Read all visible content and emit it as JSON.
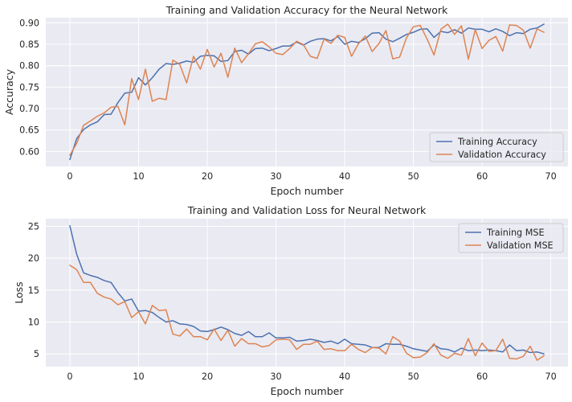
{
  "figure": {
    "background": "#ffffff",
    "axes_background": "#eaeaf2",
    "grid_color": "#ffffff",
    "series_colors": [
      "#4c72b0",
      "#dd8452"
    ]
  },
  "chart_data": [
    {
      "type": "line",
      "title": "Training and Validation Accuracy for the Neural Network",
      "xlabel": "Epoch number",
      "ylabel": "Accuracy",
      "xlim": [
        -3.5,
        72.5
      ],
      "ylim": [
        0.565,
        0.912
      ],
      "xticks": [
        0,
        10,
        20,
        30,
        40,
        50,
        60,
        70
      ],
      "yticks": [
        0.6,
        0.65,
        0.7,
        0.75,
        0.8,
        0.85,
        0.9
      ],
      "ytick_labels": [
        "0.60",
        "0.65",
        "0.70",
        "0.75",
        "0.80",
        "0.85",
        "0.90"
      ],
      "grid": true,
      "legend": "lower-right",
      "series": [
        {
          "name": "Training Accuracy",
          "color": "#4c72b0",
          "values": [
            0.581,
            0.63,
            0.651,
            0.662,
            0.669,
            0.686,
            0.687,
            0.714,
            0.736,
            0.738,
            0.772,
            0.755,
            0.772,
            0.792,
            0.805,
            0.803,
            0.806,
            0.811,
            0.808,
            0.822,
            0.824,
            0.823,
            0.81,
            0.812,
            0.833,
            0.836,
            0.827,
            0.84,
            0.841,
            0.835,
            0.84,
            0.846,
            0.846,
            0.855,
            0.848,
            0.857,
            0.862,
            0.863,
            0.858,
            0.868,
            0.85,
            0.857,
            0.854,
            0.863,
            0.876,
            0.877,
            0.862,
            0.856,
            0.864,
            0.873,
            0.878,
            0.885,
            0.886,
            0.866,
            0.88,
            0.877,
            0.884,
            0.876,
            0.888,
            0.885,
            0.885,
            0.879,
            0.886,
            0.88,
            0.87,
            0.877,
            0.875,
            0.885,
            0.888,
            0.897
          ]
        },
        {
          "name": "Validation Accuracy",
          "color": "#dd8452",
          "values": [
            0.591,
            0.619,
            0.661,
            0.671,
            0.682,
            0.69,
            0.703,
            0.705,
            0.662,
            0.77,
            0.721,
            0.792,
            0.717,
            0.724,
            0.721,
            0.813,
            0.803,
            0.76,
            0.822,
            0.792,
            0.838,
            0.797,
            0.829,
            0.773,
            0.841,
            0.807,
            0.828,
            0.851,
            0.856,
            0.844,
            0.829,
            0.826,
            0.84,
            0.857,
            0.849,
            0.822,
            0.817,
            0.862,
            0.852,
            0.871,
            0.866,
            0.822,
            0.851,
            0.869,
            0.833,
            0.852,
            0.882,
            0.816,
            0.82,
            0.865,
            0.891,
            0.894,
            0.862,
            0.825,
            0.885,
            0.897,
            0.873,
            0.893,
            0.815,
            0.884,
            0.84,
            0.859,
            0.868,
            0.834,
            0.895,
            0.894,
            0.883,
            0.841,
            0.886,
            0.878
          ]
        }
      ]
    },
    {
      "type": "line",
      "title": "Training and Validation Loss for Neural Network",
      "xlabel": "Epoch number",
      "ylabel": "Loss",
      "xlim": [
        -3.5,
        72.5
      ],
      "ylim": [
        3.0,
        26.2
      ],
      "xticks": [
        0,
        10,
        20,
        30,
        40,
        50,
        60,
        70
      ],
      "yticks": [
        5,
        10,
        15,
        20,
        25
      ],
      "ytick_labels": [
        "5",
        "10",
        "15",
        "20",
        "25"
      ],
      "grid": true,
      "legend": "upper-right",
      "series": [
        {
          "name": "Training MSE",
          "color": "#4c72b0",
          "values": [
            25.1,
            20.6,
            17.7,
            17.3,
            17.0,
            16.5,
            16.2,
            14.6,
            13.3,
            13.6,
            11.7,
            11.8,
            11.5,
            10.7,
            10.0,
            10.2,
            9.7,
            9.6,
            9.3,
            8.6,
            8.5,
            8.8,
            9.2,
            8.8,
            8.2,
            7.9,
            8.5,
            7.7,
            7.7,
            8.3,
            7.5,
            7.5,
            7.6,
            7.0,
            7.1,
            7.3,
            7.1,
            6.8,
            7.0,
            6.6,
            7.3,
            6.6,
            6.5,
            6.4,
            6.0,
            6.0,
            6.6,
            6.5,
            6.5,
            6.2,
            5.8,
            5.6,
            5.4,
            6.4,
            5.8,
            5.7,
            5.3,
            5.9,
            5.5,
            5.6,
            5.5,
            5.6,
            5.5,
            5.3,
            6.4,
            5.5,
            5.6,
            5.2,
            5.3,
            5.0
          ]
        },
        {
          "name": "Validation MSE",
          "color": "#dd8452",
          "values": [
            18.9,
            18.2,
            16.2,
            16.2,
            14.5,
            13.9,
            13.6,
            12.7,
            13.2,
            10.7,
            11.6,
            9.7,
            12.6,
            11.8,
            11.9,
            8.1,
            7.8,
            8.9,
            7.7,
            7.7,
            7.2,
            8.9,
            7.1,
            8.7,
            6.2,
            7.4,
            6.6,
            6.6,
            6.1,
            6.3,
            7.2,
            7.3,
            7.2,
            5.7,
            6.5,
            6.5,
            7.0,
            5.7,
            5.8,
            5.5,
            5.5,
            6.5,
            5.7,
            5.2,
            6.0,
            5.9,
            5.0,
            7.7,
            7.0,
            5.1,
            4.4,
            4.5,
            5.2,
            6.6,
            4.8,
            4.3,
            5.1,
            4.8,
            7.4,
            4.7,
            6.7,
            5.4,
            5.5,
            7.3,
            4.3,
            4.2,
            4.6,
            6.2,
            4.0,
            4.7
          ]
        }
      ]
    }
  ]
}
